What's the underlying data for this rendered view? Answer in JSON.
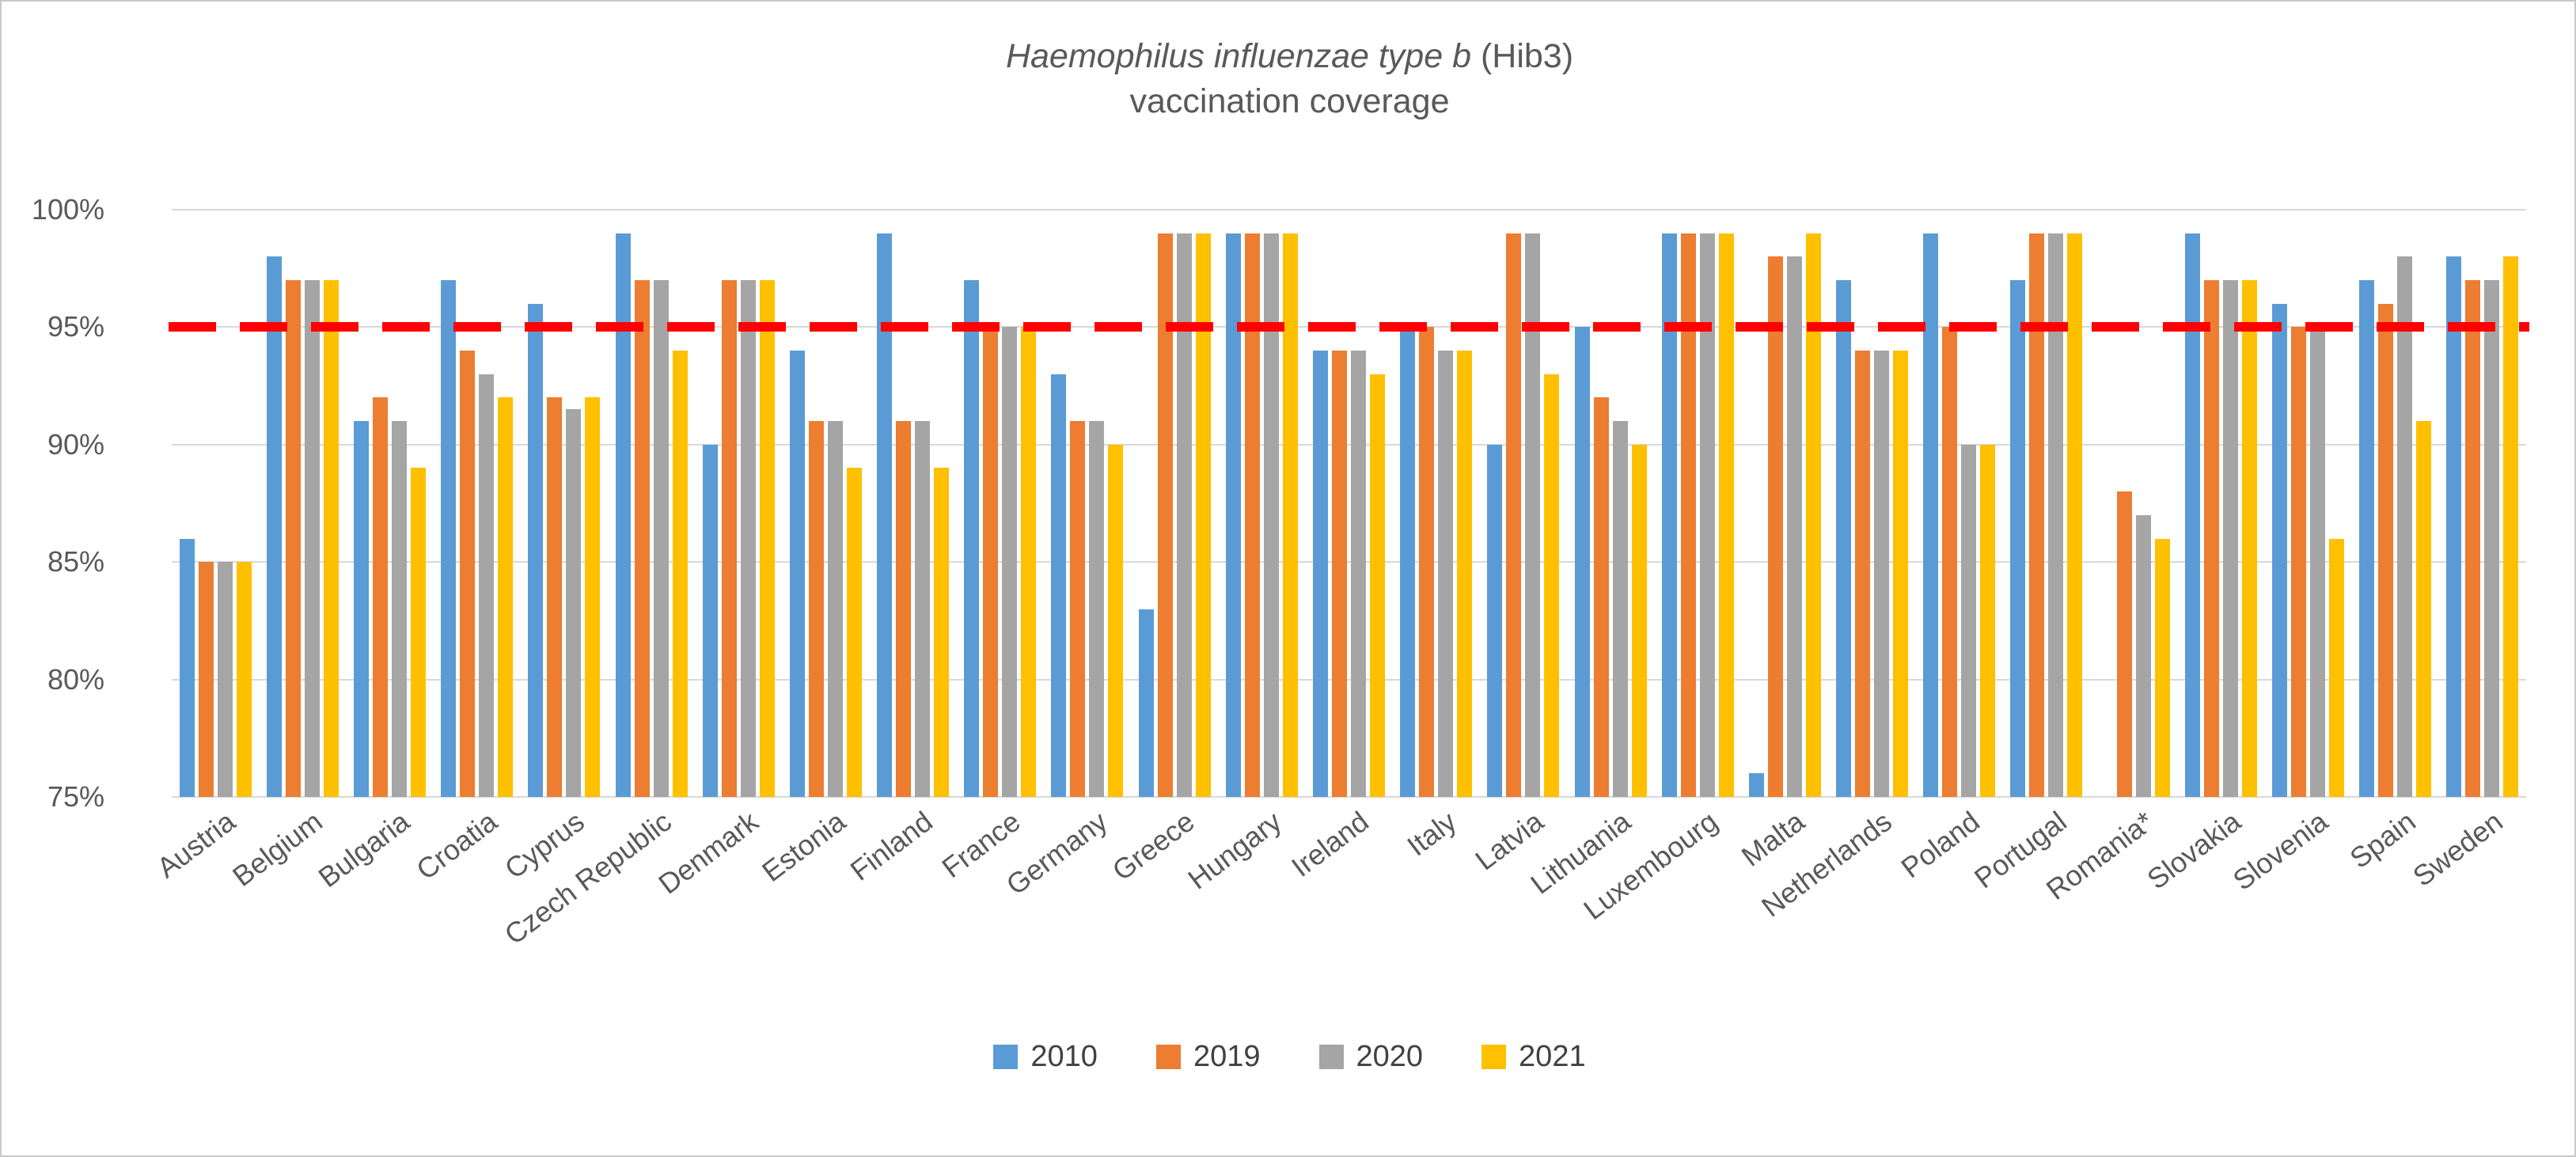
{
  "figure": {
    "title_italic": "Haemophilus influenzae type b",
    "title_paren": " (Hib3)",
    "title_line2": "vaccination coverage"
  },
  "chart_data": {
    "type": "bar",
    "title": "Haemophilus influenzae type b (Hib3) vaccination coverage",
    "categories": [
      "Austria",
      "Belgium",
      "Bulgaria",
      "Croatia",
      "Cyprus",
      "Czech Republic",
      "Denmark",
      "Estonia",
      "Finland",
      "France",
      "Germany",
      "Greece",
      "Hungary",
      "Ireland",
      "Italy",
      "Latvia",
      "Lithuania",
      "Luxembourg",
      "Malta",
      "Netherlands",
      "Poland",
      "Portugal",
      "Romania*",
      "Slovakia",
      "Slovenia",
      "Spain",
      "Sweden"
    ],
    "series": [
      {
        "name": "2010",
        "color": "#5B9BD5",
        "values": [
          86,
          98,
          91,
          97,
          96,
          99,
          90,
          94,
          99,
          97,
          93,
          83,
          99,
          94,
          95,
          90,
          95,
          99,
          76,
          97,
          99,
          97,
          null,
          99,
          96,
          97,
          98
        ]
      },
      {
        "name": "2019",
        "color": "#ED7D31",
        "values": [
          85,
          97,
          92,
          94,
          92,
          97,
          97,
          91,
          91,
          95,
          91,
          99,
          99,
          94,
          95,
          99,
          92,
          99,
          98,
          94,
          95,
          99,
          88,
          97,
          95,
          96,
          97
        ]
      },
      {
        "name": "2020",
        "color": "#A5A5A5",
        "values": [
          85,
          97,
          91,
          93,
          91.5,
          97,
          97,
          91,
          91,
          95,
          91,
          99,
          99,
          94,
          94,
          99,
          91,
          99,
          98,
          94,
          90,
          99,
          87,
          97,
          95,
          98,
          97
        ]
      },
      {
        "name": "2021",
        "color": "#FFC000",
        "values": [
          85,
          97,
          89,
          92,
          92,
          94,
          97,
          89,
          89,
          95,
          90,
          99,
          99,
          93,
          94,
          93,
          90,
          99,
          99,
          94,
          90,
          99,
          86,
          97,
          86,
          91,
          98
        ]
      }
    ],
    "ylabel": "",
    "xlabel": "",
    "ylim": [
      75,
      100
    ],
    "ytick_step": 5,
    "ytick_labels": [
      "75%",
      "80%",
      "85%",
      "90%",
      "95%",
      "100%"
    ],
    "grid": true,
    "gridline_color": "#d9d9d9",
    "target_line": {
      "value": 95,
      "color": "#FE0000",
      "style": "dashed"
    },
    "legend_position": "bottom",
    "legend_labels": [
      "2010",
      "2019",
      "2020",
      "2021"
    ]
  }
}
